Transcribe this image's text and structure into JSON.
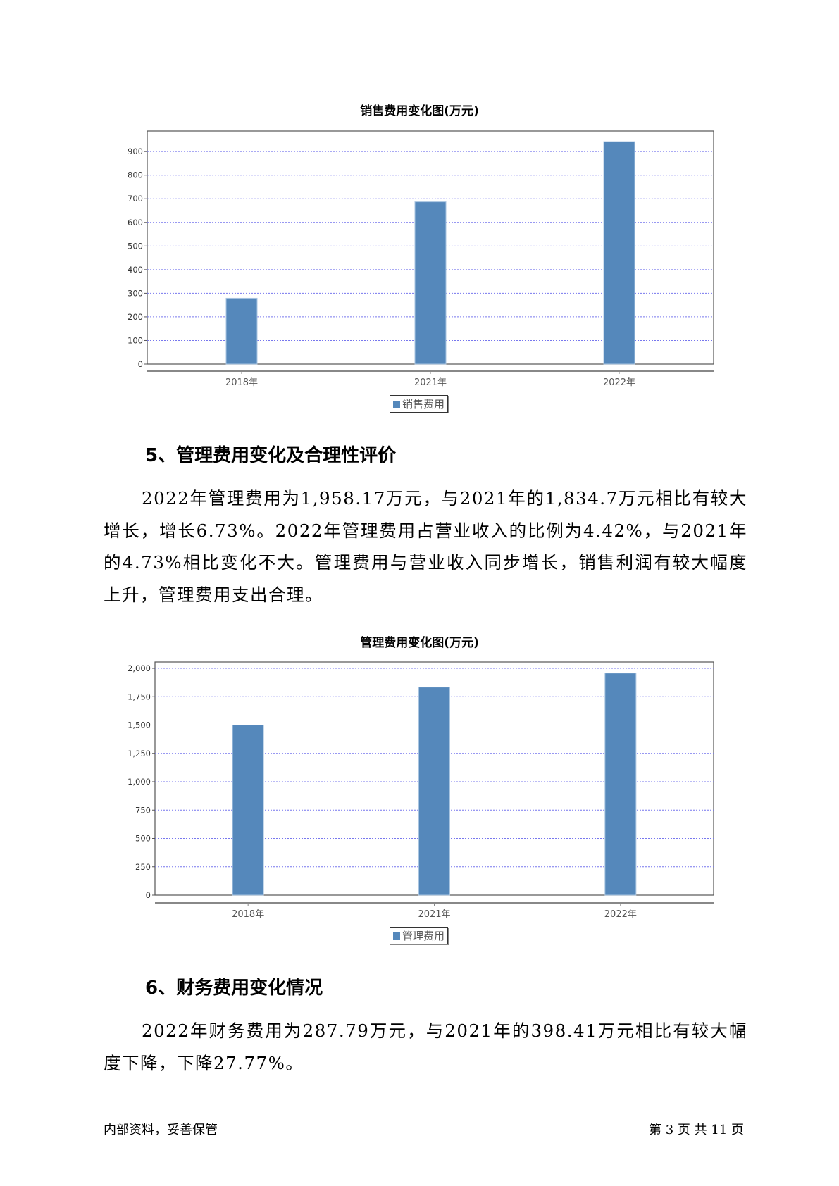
{
  "chart_data": [
    {
      "type": "bar",
      "title": "销售费用变化图(万元)",
      "categories": [
        "2018年",
        "2021年",
        "2022年"
      ],
      "series": [
        {
          "name": "销售费用",
          "values": [
            279,
            687,
            942
          ]
        }
      ],
      "yticks": [
        0,
        100,
        200,
        300,
        400,
        500,
        600,
        700,
        800,
        900
      ],
      "ylim": [
        0,
        987
      ],
      "grid": true,
      "legend": "bottom",
      "color": "#5588bb"
    },
    {
      "type": "bar",
      "title": "管理费用变化图(万元)",
      "categories": [
        "2018年",
        "2021年",
        "2022年"
      ],
      "series": [
        {
          "name": "管理费用",
          "values": [
            1500,
            1834.7,
            1958.17
          ]
        }
      ],
      "yticks": [
        0,
        250,
        500,
        750,
        1000,
        1250,
        1500,
        1750,
        2000
      ],
      "ylim": [
        0,
        2056
      ],
      "grid": true,
      "legend": "bottom",
      "color": "#5588bb"
    }
  ],
  "sections": [
    {
      "heading": "5、管理费用变化及合理性评价",
      "text": "2022年管理费用为1,958.17万元，与2021年的1,834.7万元相比有较大增长，增长6.73%。2022年管理费用占营业收入的比例为4.42%，与2021年的4.73%相比变化不大。管理费用与营业收入同步增长，销售利润有较大幅度上升，管理费用支出合理。"
    },
    {
      "heading": "6、财务费用变化情况",
      "text": "2022年财务费用为287.79万元，与2021年的398.41万元相比有较大幅度下降，下降27.77%。"
    }
  ],
  "footer": {
    "left": "内部资料，妥善保管",
    "page": "第 3 页  共 11 页"
  }
}
